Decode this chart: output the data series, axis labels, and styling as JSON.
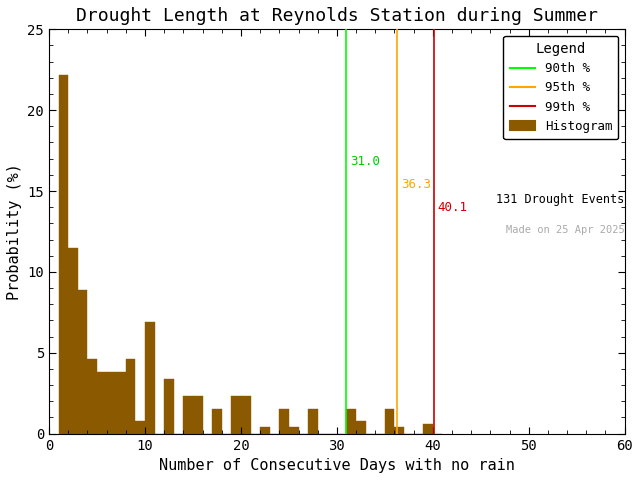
{
  "title": "Drought Length at Reynolds Station during Summer",
  "xlabel": "Number of Consecutive Days with no rain",
  "ylabel": "Probability (%)",
  "xlim": [
    0,
    60
  ],
  "ylim": [
    0,
    25
  ],
  "xticks": [
    0,
    10,
    20,
    30,
    40,
    50,
    60
  ],
  "yticks": [
    0,
    5,
    10,
    15,
    20,
    25
  ],
  "bar_lefts": [
    1,
    2,
    3,
    4,
    5,
    6,
    7,
    8,
    9,
    10,
    11,
    12,
    13,
    14,
    15,
    16,
    17,
    18,
    19,
    20,
    21,
    22,
    23,
    24,
    25,
    26,
    27,
    28,
    29,
    30,
    31,
    32,
    33,
    34,
    35,
    36,
    37,
    38,
    39,
    40
  ],
  "bar_heights": [
    22.2,
    11.5,
    8.9,
    4.6,
    3.8,
    3.8,
    3.8,
    4.6,
    0.8,
    6.9,
    0.0,
    3.4,
    0.0,
    2.3,
    2.3,
    0.0,
    1.5,
    0.0,
    2.3,
    2.3,
    0.0,
    0.4,
    0.0,
    1.5,
    0.4,
    0.0,
    1.5,
    0.0,
    0.0,
    0.0,
    1.5,
    0.8,
    0.0,
    0.0,
    1.5,
    0.4,
    0.0,
    0.0,
    0.6,
    0.0
  ],
  "bar_color": "#8B5A00",
  "bar_edgecolor": "#8B5A00",
  "p90": 31.0,
  "p95": 36.3,
  "p99": 40.1,
  "p90_color": "#00FF00",
  "p95_color": "#FFA500",
  "p99_color": "#CC0000",
  "p90_label_color": "#00CC00",
  "p95_label_color": "#FFA500",
  "p99_label_color": "#CC0000",
  "drought_events": 131,
  "made_on": "25 Apr 2025",
  "legend_title": "Legend",
  "background_color": "#ffffff",
  "title_fontsize": 13,
  "label_fontsize": 11,
  "tick_fontsize": 10,
  "figsize": [
    6.4,
    4.8
  ],
  "dpi": 100
}
